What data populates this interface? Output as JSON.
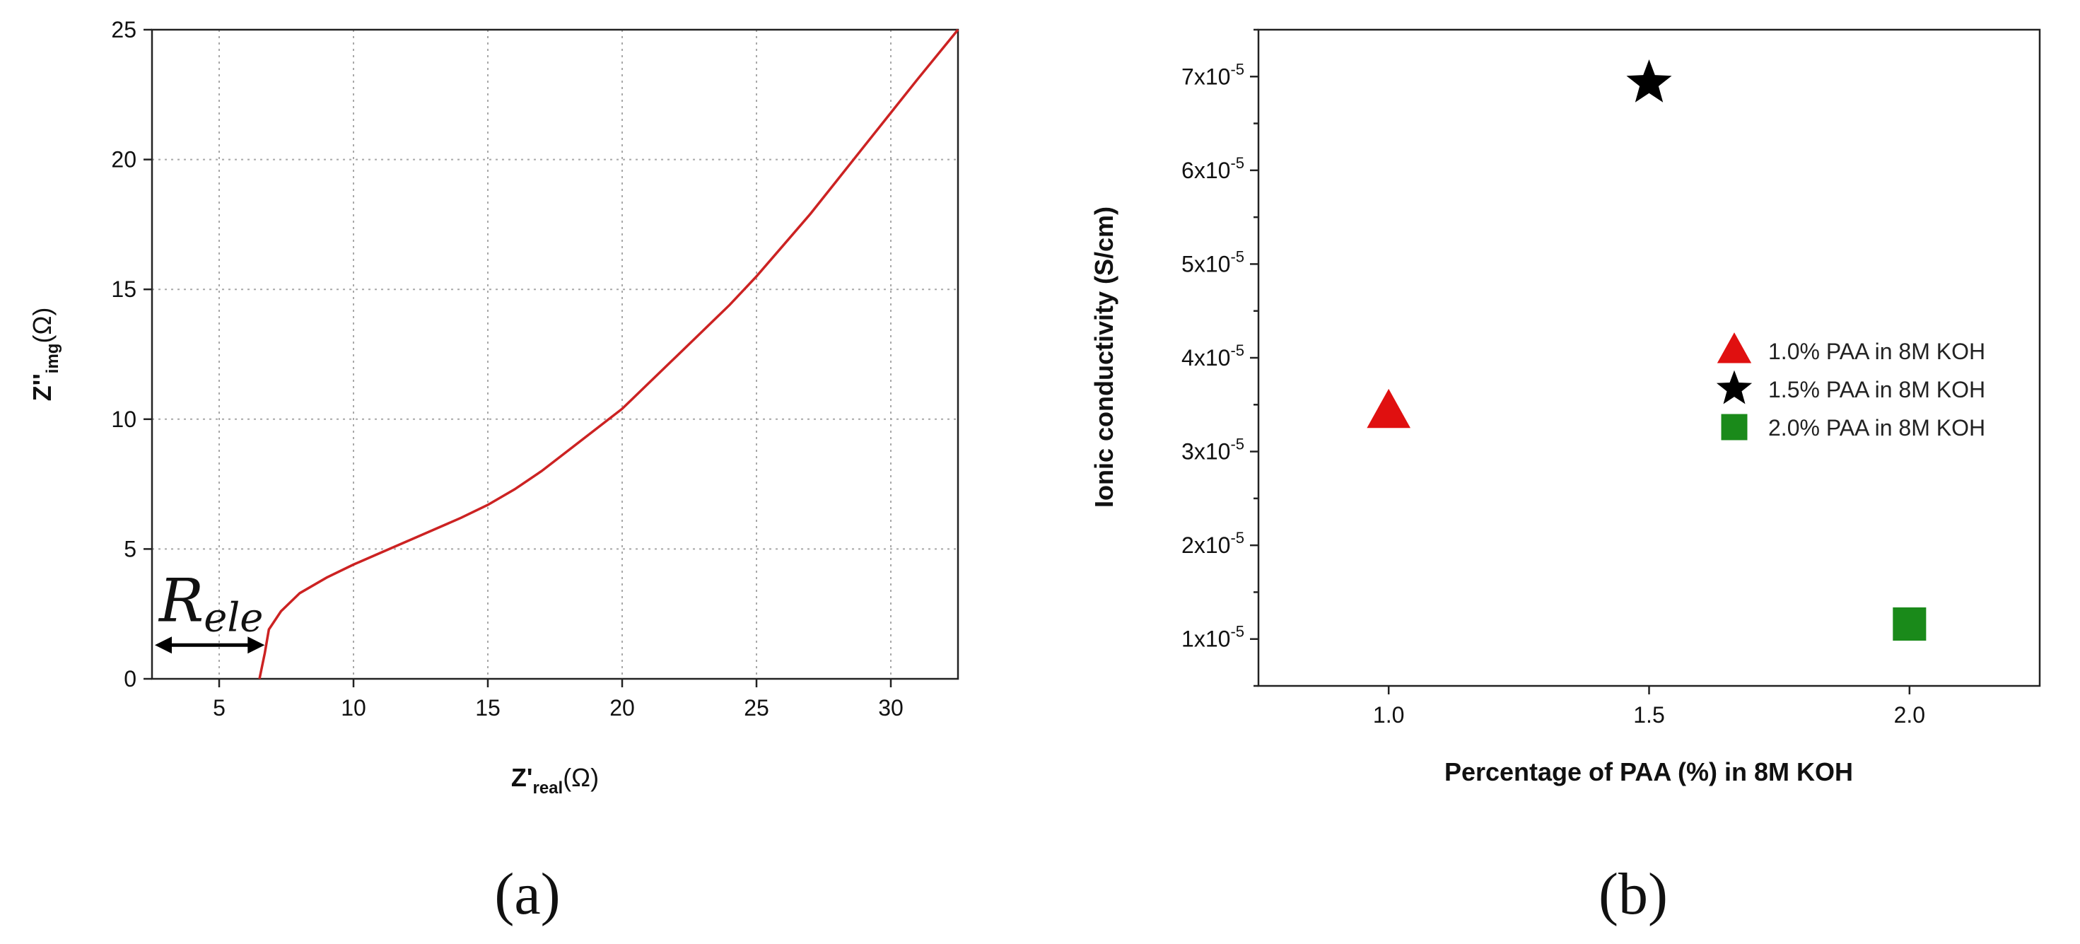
{
  "panel_labels": {
    "a": "(a)",
    "b": "(b)"
  },
  "chart_data": [
    {
      "type": "line",
      "xlabel": {
        "main": "Z'",
        "sub": "real",
        "tail": "(Ω)"
      },
      "ylabel": {
        "main": "Z''",
        "sub": "img",
        "tail": "(Ω)"
      },
      "xlim": [
        2.5,
        32.5
      ],
      "ylim": [
        0,
        25
      ],
      "xticks": [
        5,
        10,
        15,
        20,
        25,
        30
      ],
      "yticks": [
        0,
        5,
        10,
        15,
        20,
        25
      ],
      "grid": true,
      "series": [
        {
          "color": "#cc2222",
          "x": [
            6.5,
            6.7,
            6.85,
            7.3,
            8,
            9,
            10,
            11,
            12,
            13,
            14,
            15,
            16,
            17,
            18,
            19,
            20,
            21,
            22,
            23,
            24,
            25,
            26,
            27,
            28,
            29,
            30,
            31,
            32.5
          ],
          "y": [
            0,
            1.0,
            1.9,
            2.6,
            3.3,
            3.9,
            4.4,
            4.85,
            5.3,
            5.75,
            6.2,
            6.7,
            7.3,
            8.0,
            8.8,
            9.6,
            10.4,
            11.4,
            12.4,
            13.4,
            14.4,
            15.5,
            16.7,
            17.9,
            19.2,
            20.5,
            21.8,
            23.1,
            25.0
          ]
        }
      ],
      "annotation": {
        "base": "R",
        "sub": "ele",
        "x_start": 2.5,
        "x_end": 6.85,
        "y": 1.3
      }
    },
    {
      "type": "scatter",
      "xlabel": "Percentage of PAA (%) in 8M KOH",
      "ylabel": "Ionic conductivity (S/cm)",
      "xlim": [
        0.75,
        2.25
      ],
      "ylim": [
        5e-06,
        7.5e-05
      ],
      "xticks": [
        1.0,
        1.5,
        2.0
      ],
      "xtick_labels": [
        "1.0",
        "1.5",
        "2.0"
      ],
      "yticks": [
        1e-05,
        2e-05,
        3e-05,
        4e-05,
        5e-05,
        6e-05,
        7e-05
      ],
      "ytick_labels": [
        {
          "mant": "1x10",
          "exp": "-5"
        },
        {
          "mant": "2x10",
          "exp": "-5"
        },
        {
          "mant": "3x10",
          "exp": "-5"
        },
        {
          "mant": "4x10",
          "exp": "-5"
        },
        {
          "mant": "5x10",
          "exp": "-5"
        },
        {
          "mant": "6x10",
          "exp": "-5"
        },
        {
          "mant": "7x10",
          "exp": "-5"
        }
      ],
      "grid": false,
      "legend_position": "right",
      "series": [
        {
          "name": "1.0% PAA in 8M KOH",
          "marker": "triangle",
          "color": "#e01010",
          "x": 1.0,
          "y": 3.42e-05
        },
        {
          "name": "1.5% PAA in 8M KOH",
          "marker": "star",
          "color": "#000000",
          "x": 1.5,
          "y": 6.93e-05
        },
        {
          "name": "2.0% PAA in 8M KOH",
          "marker": "square",
          "color": "#1a8a1a",
          "x": 2.0,
          "y": 1.16e-05
        }
      ]
    }
  ]
}
